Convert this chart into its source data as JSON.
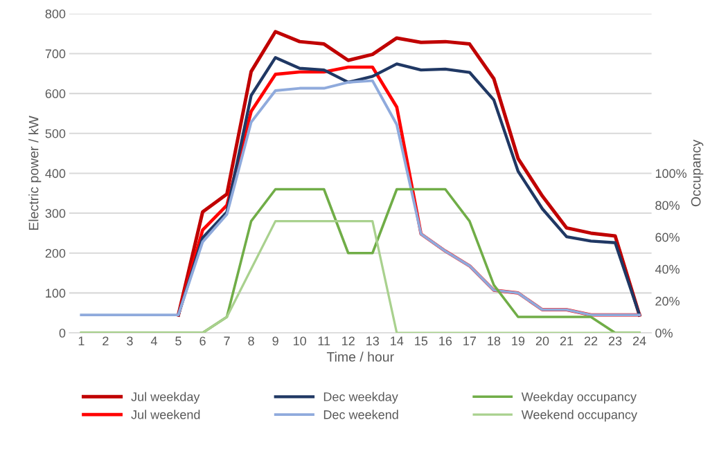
{
  "chart_data": {
    "type": "line",
    "xlabel": "Time / hour",
    "ylabel": "Electric power / kW",
    "y2label": "Occupancy",
    "categories": [
      "1",
      "2",
      "3",
      "4",
      "5",
      "6",
      "7",
      "8",
      "9",
      "10",
      "11",
      "12",
      "13",
      "14",
      "15",
      "16",
      "17",
      "18",
      "19",
      "20",
      "21",
      "22",
      "23",
      "24"
    ],
    "ylim": [
      0,
      800
    ],
    "yticks": [
      0,
      100,
      200,
      300,
      400,
      500,
      600,
      700,
      800
    ],
    "y2lim": [
      0,
      200
    ],
    "y2ticks": [
      {
        "value": 0,
        "label": "0%"
      },
      {
        "value": 20,
        "label": "20%"
      },
      {
        "value": 40,
        "label": "40%"
      },
      {
        "value": 60,
        "label": "60%"
      },
      {
        "value": 80,
        "label": "80%"
      },
      {
        "value": 100,
        "label": "100%"
      }
    ],
    "grid": "y",
    "legend": "bottom",
    "marker": "none",
    "line_style": "solid",
    "series": [
      {
        "name": "Jul weekday",
        "color": "#c00000",
        "values": [
          null,
          null,
          null,
          null,
          45,
          303,
          348,
          655,
          755,
          730,
          724,
          683,
          698,
          739,
          728,
          730,
          724,
          637,
          437,
          343,
          263,
          250,
          243,
          45
        ]
      },
      {
        "name": "Jul weekend",
        "color": "#ff0000",
        "values": [
          null,
          null,
          null,
          null,
          45,
          258,
          320,
          555,
          648,
          654,
          654,
          666,
          666,
          566,
          248,
          205,
          168,
          107,
          100,
          58,
          58,
          45,
          45,
          45
        ]
      },
      {
        "name": "Dec weekday",
        "color": "#203864",
        "values": [
          null,
          null,
          null,
          null,
          45,
          238,
          303,
          595,
          690,
          663,
          659,
          628,
          643,
          674,
          659,
          661,
          653,
          584,
          405,
          311,
          241,
          230,
          226,
          45
        ]
      },
      {
        "name": "Dec weekend",
        "color": "#8faadc",
        "values": [
          45,
          45,
          45,
          45,
          45,
          228,
          297,
          528,
          607,
          613,
          613,
          628,
          632,
          522,
          248,
          205,
          168,
          107,
          100,
          58,
          58,
          45,
          45,
          45
        ]
      },
      {
        "name": "Weekday occupancy",
        "color": "#70ad47",
        "axis": "y2",
        "values": [
          0,
          0,
          0,
          0,
          0,
          0,
          10,
          70,
          90,
          90,
          90,
          50,
          50,
          90,
          90,
          90,
          70,
          30,
          10,
          10,
          10,
          10,
          0,
          0
        ]
      },
      {
        "name": "Weekend occupancy",
        "color": "#a9d18e",
        "axis": "y2",
        "values": [
          0,
          0,
          0,
          0,
          0,
          0,
          10,
          40,
          70,
          70,
          70,
          70,
          70,
          0,
          0,
          0,
          0,
          0,
          0,
          0,
          0,
          0,
          0,
          0
        ]
      }
    ]
  }
}
